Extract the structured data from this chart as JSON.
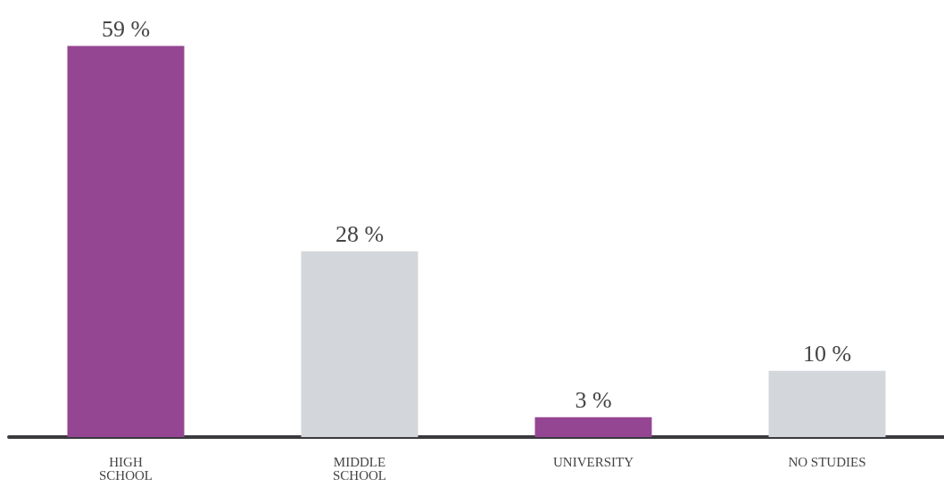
{
  "chart_data": {
    "type": "bar",
    "categories": [
      "HIGH\nSCHOOL",
      "MIDDLE\nSCHOOL",
      "UNIVERSITY",
      "NO STUDIES"
    ],
    "values": [
      59,
      28,
      3,
      10
    ],
    "colors": [
      "#954692",
      "#d3d6da",
      "#954692",
      "#d3d6da"
    ],
    "value_labels": [
      "59 %",
      "28 %",
      "3 %",
      "10 %"
    ]
  }
}
